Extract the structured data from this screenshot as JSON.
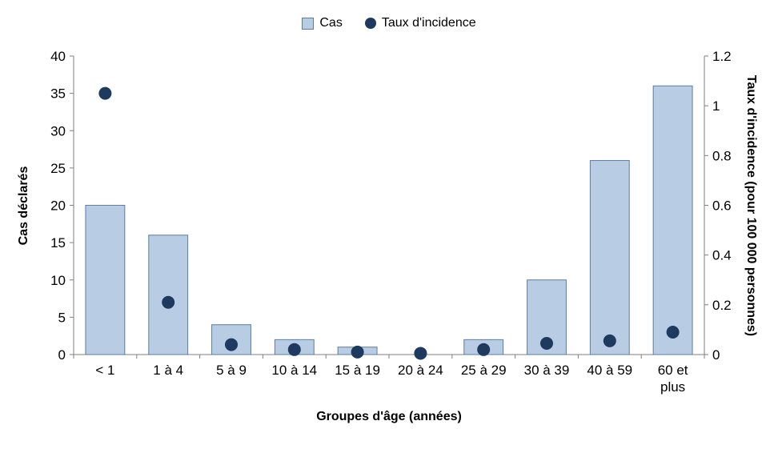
{
  "legend": {
    "cas_label": "Cas",
    "taux_label": "Taux d'incidence"
  },
  "chart_data": {
    "type": "bar",
    "subtype": "bar-with-scatter-overlay-dual-axis",
    "categories": [
      "< 1",
      "1 à 4",
      "5 à 9",
      "10 à 14",
      "15 à 19",
      "20 à 24",
      "25 à 29",
      "30 à 39",
      "40 à 59",
      "60 et plus"
    ],
    "series": [
      {
        "name": "Cas",
        "type": "bar",
        "axis": "left",
        "values": [
          20,
          16,
          4,
          2,
          1,
          0,
          2,
          10,
          26,
          36
        ]
      },
      {
        "name": "Taux d'incidence",
        "type": "scatter",
        "axis": "right",
        "values": [
          1.05,
          0.21,
          0.04,
          0.02,
          0.01,
          0.005,
          0.02,
          0.045,
          0.055,
          0.09
        ]
      }
    ],
    "left_axis": {
      "title": "Cas déclarés",
      "min": 0,
      "max": 40,
      "step": 5
    },
    "right_axis": {
      "title": "Taux d'incidence (pour 100 000 personnes)",
      "min": 0,
      "max": 1.2,
      "step": 0.2
    },
    "x_axis": {
      "title": "Groupes d'âge (années)"
    },
    "legend_position": "top",
    "grid": false,
    "colors": {
      "bar_fill": "#b8cce4",
      "bar_border": "#5b7da3",
      "dot": "#1f3a5f",
      "axis_line": "#7f7f7f",
      "text": "#000000"
    }
  }
}
